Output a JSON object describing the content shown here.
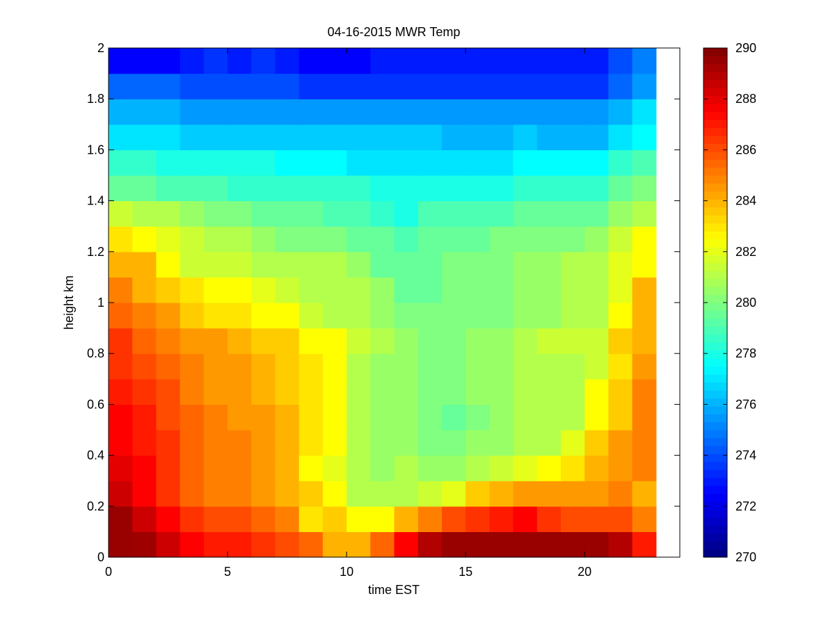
{
  "chart_data": {
    "type": "heatmap",
    "title": "04-16-2015 MWR Temp",
    "xlabel": "time EST",
    "ylabel": "height km",
    "xlim": [
      0,
      24
    ],
    "ylim": [
      0,
      2
    ],
    "x_ticks": [
      0,
      5,
      10,
      15,
      20
    ],
    "y_ticks": [
      0,
      0.2,
      0.4,
      0.6,
      0.8,
      1,
      1.2,
      1.4,
      1.6,
      1.8,
      2
    ],
    "colormap": "jet",
    "colorbar": {
      "min": 270,
      "max": 290,
      "ticks": [
        270,
        272,
        274,
        276,
        278,
        280,
        282,
        284,
        286,
        288,
        290
      ]
    },
    "x_step_hours": 1,
    "y_levels_km": [
      0,
      0.1,
      0.2,
      0.3,
      0.4,
      0.5,
      0.6,
      0.7,
      0.8,
      0.9,
      1.0,
      1.1,
      1.2,
      1.3,
      1.4,
      1.5,
      1.6,
      1.7,
      1.8,
      1.9,
      2.0
    ],
    "values": [
      [
        289.5,
        289.4,
        288.5,
        287.5,
        287.0,
        287.0,
        286.5,
        286.0,
        285.5,
        284.0,
        284.0,
        285.5,
        287.5,
        289.0,
        289.5,
        289.5,
        289.5,
        289.5,
        289.5,
        289.5,
        289.5,
        289.0,
        287.0
      ],
      [
        289.5,
        288.5,
        287.5,
        286.5,
        286.0,
        286.0,
        285.5,
        285.0,
        283.0,
        283.5,
        282.5,
        282.5,
        284.0,
        285.0,
        286.0,
        286.5,
        287.0,
        287.5,
        286.5,
        286.0,
        286.0,
        286.0,
        285.0
      ],
      [
        288.5,
        287.5,
        286.5,
        285.5,
        285.0,
        285.0,
        284.5,
        284.0,
        283.5,
        282.5,
        281.0,
        281.0,
        281.0,
        281.5,
        282.0,
        283.5,
        284.0,
        284.5,
        284.5,
        284.5,
        284.5,
        285.0,
        284.0
      ],
      [
        288.0,
        287.5,
        286.5,
        285.5,
        285.0,
        285.0,
        284.5,
        284.0,
        282.5,
        282.0,
        281.0,
        280.5,
        281.0,
        280.5,
        280.5,
        281.0,
        281.5,
        282.0,
        282.5,
        283.0,
        284.0,
        284.5,
        285.0
      ],
      [
        287.5,
        287.0,
        286.5,
        285.5,
        285.0,
        285.0,
        284.5,
        284.0,
        283.0,
        282.5,
        281.0,
        280.5,
        280.5,
        280.0,
        280.0,
        280.5,
        280.5,
        281.0,
        281.0,
        282.0,
        283.5,
        284.5,
        285.0
      ],
      [
        287.5,
        287.0,
        286.0,
        285.5,
        285.0,
        284.5,
        284.5,
        284.0,
        283.0,
        282.5,
        281.0,
        280.5,
        280.5,
        280.0,
        279.5,
        280.0,
        280.5,
        281.0,
        281.0,
        281.0,
        282.5,
        283.5,
        285.0
      ],
      [
        287.0,
        286.5,
        286.0,
        285.0,
        284.5,
        284.5,
        284.0,
        283.5,
        283.0,
        282.5,
        281.0,
        280.5,
        280.5,
        280.0,
        280.0,
        280.5,
        280.5,
        281.0,
        281.0,
        281.0,
        282.5,
        283.5,
        285.0
      ],
      [
        286.5,
        286.0,
        285.5,
        285.0,
        284.5,
        284.5,
        284.0,
        283.5,
        283.0,
        282.5,
        281.0,
        280.5,
        280.5,
        280.0,
        280.0,
        280.5,
        280.5,
        281.0,
        281.0,
        281.0,
        281.5,
        283.0,
        284.5
      ],
      [
        286.5,
        285.5,
        285.0,
        284.5,
        284.5,
        284.0,
        283.5,
        283.5,
        282.5,
        282.5,
        281.5,
        281.0,
        280.5,
        280.0,
        280.0,
        280.5,
        280.5,
        281.0,
        281.5,
        281.5,
        281.5,
        283.5,
        284.0
      ],
      [
        285.5,
        285.0,
        284.5,
        283.5,
        283.0,
        283.0,
        282.5,
        282.5,
        281.5,
        281.0,
        281.0,
        280.5,
        280.0,
        280.0,
        280.0,
        280.0,
        280.0,
        280.5,
        280.5,
        281.0,
        281.0,
        282.5,
        284.0
      ],
      [
        285.0,
        284.0,
        283.5,
        283.0,
        282.5,
        282.5,
        282.0,
        281.5,
        281.0,
        281.0,
        281.0,
        280.5,
        279.5,
        279.5,
        280.0,
        280.0,
        280.0,
        280.5,
        280.5,
        281.0,
        281.0,
        282.0,
        284.0
      ],
      [
        284.0,
        284.0,
        282.5,
        281.5,
        281.5,
        281.5,
        281.0,
        281.0,
        281.0,
        281.0,
        280.5,
        279.5,
        279.5,
        279.5,
        280.0,
        280.0,
        280.0,
        280.5,
        280.5,
        281.0,
        281.0,
        282.0,
        282.5
      ],
      [
        283.0,
        282.5,
        282.0,
        281.5,
        281.0,
        281.0,
        280.5,
        280.0,
        280.0,
        280.0,
        279.5,
        279.5,
        279.0,
        279.5,
        279.5,
        279.5,
        280.0,
        280.0,
        280.0,
        280.0,
        280.5,
        281.5,
        282.5
      ],
      [
        281.5,
        281.0,
        281.0,
        280.5,
        280.0,
        280.0,
        279.5,
        279.5,
        279.5,
        279.0,
        279.0,
        278.5,
        278.0,
        279.0,
        279.0,
        279.0,
        279.0,
        279.5,
        279.5,
        279.5,
        279.5,
        280.5,
        281.0
      ],
      [
        279.5,
        279.5,
        279.0,
        279.0,
        279.0,
        278.5,
        278.5,
        278.5,
        278.5,
        278.5,
        278.5,
        278.0,
        278.0,
        278.0,
        278.0,
        278.0,
        278.0,
        278.5,
        278.5,
        278.5,
        278.5,
        279.5,
        280.0
      ],
      [
        278.5,
        278.5,
        278.0,
        278.0,
        278.0,
        278.0,
        278.0,
        277.5,
        277.5,
        277.5,
        277.0,
        277.0,
        277.0,
        277.0,
        277.0,
        277.0,
        277.0,
        277.5,
        277.5,
        277.5,
        277.5,
        278.5,
        279.0
      ],
      [
        277.0,
        277.0,
        277.0,
        276.5,
        276.5,
        276.5,
        276.5,
        276.5,
        276.5,
        276.5,
        276.5,
        276.5,
        276.5,
        276.5,
        276.0,
        276.0,
        276.0,
        276.5,
        276.0,
        276.0,
        276.0,
        277.0,
        277.5
      ],
      [
        276.0,
        276.0,
        276.0,
        275.5,
        275.5,
        275.5,
        275.5,
        275.5,
        275.5,
        275.5,
        275.5,
        275.5,
        275.5,
        275.5,
        275.5,
        275.5,
        275.5,
        275.5,
        275.5,
        275.5,
        275.5,
        276.0,
        277.0
      ],
      [
        274.5,
        274.5,
        274.5,
        274.0,
        274.0,
        274.0,
        274.0,
        274.0,
        273.5,
        273.5,
        273.5,
        273.5,
        273.5,
        273.5,
        273.5,
        273.5,
        273.5,
        273.5,
        273.5,
        273.5,
        273.5,
        274.5,
        275.5
      ],
      [
        272.5,
        272.5,
        272.5,
        273.0,
        273.5,
        273.0,
        273.5,
        273.0,
        272.5,
        272.5,
        272.5,
        273.0,
        273.0,
        273.0,
        273.0,
        273.0,
        273.0,
        273.0,
        273.0,
        273.0,
        273.0,
        274.0,
        275.0
      ],
      [
        271.5,
        271.5,
        272.0,
        272.5,
        273.0,
        273.0,
        273.0,
        272.5,
        272.0,
        272.0,
        272.0,
        272.5,
        272.5,
        272.5,
        272.5,
        272.5,
        272.5,
        272.5,
        272.5,
        272.5,
        272.5,
        273.5,
        274.5
      ]
    ]
  }
}
